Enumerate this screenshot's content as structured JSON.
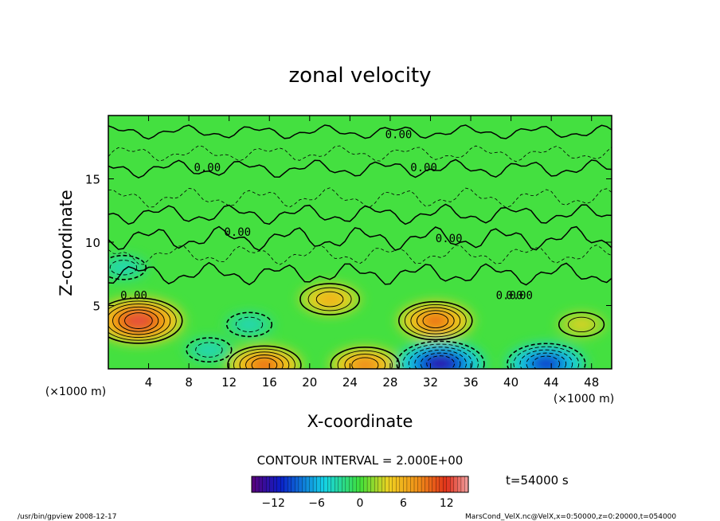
{
  "chart_data": {
    "type": "heatmap",
    "title": "zonal velocity",
    "xlabel": "X-coordinate",
    "ylabel": "Z-coordinate",
    "x_unit": "(×1000 m)",
    "x_unit_right": "(×1000 m)",
    "y_unit": "(×1000 m)",
    "xlim": [
      0,
      50
    ],
    "ylim": [
      0,
      20
    ],
    "x_ticks": [
      4,
      8,
      12,
      16,
      20,
      24,
      28,
      32,
      36,
      40,
      44,
      48
    ],
    "y_ticks": [
      5,
      10,
      15
    ],
    "contour_interval_text": "CONTOUR INTERVAL = 2.000E+00",
    "contour_labels": [
      "0.00",
      "0.00",
      "0.00",
      "0.00",
      "0.00",
      "0.00",
      "0.00",
      "0.00"
    ],
    "time_text": "t=54000 s",
    "colorbar": {
      "min": -15,
      "max": 15,
      "ticks": [
        -12,
        -6,
        0,
        6,
        12
      ],
      "tick_labels": [
        "−12",
        "−6",
        "0",
        "6",
        "12"
      ]
    },
    "footer_left": "/usr/bin/gpview   2008-12-17",
    "footer_right": "MarsCond_VelX.nc@VelX,x=0:50000,z=0:20000,t=054000",
    "features": [
      {
        "x": 3,
        "z": 3.8,
        "value": 13,
        "sign": "positive"
      },
      {
        "x": 22,
        "z": 5.5,
        "value": 7,
        "sign": "positive"
      },
      {
        "x": 32.5,
        "z": 3.8,
        "value": 10,
        "sign": "positive"
      },
      {
        "x": 15.5,
        "z": 0.3,
        "value": 10,
        "sign": "positive"
      },
      {
        "x": 25.5,
        "z": 0.3,
        "value": 9,
        "sign": "positive"
      },
      {
        "x": 47,
        "z": 3.5,
        "value": 4,
        "sign": "positive"
      },
      {
        "x": 14,
        "z": 3.5,
        "value": -4,
        "sign": "negative"
      },
      {
        "x": 33,
        "z": 0.4,
        "value": -13,
        "sign": "negative"
      },
      {
        "x": 43.5,
        "z": 0.4,
        "value": -11,
        "sign": "negative"
      },
      {
        "x": 1.5,
        "z": 8,
        "value": -4,
        "sign": "negative"
      },
      {
        "x": 10,
        "z": 1.5,
        "value": -4,
        "sign": "negative"
      }
    ],
    "colors": {
      "purple": "#5a007a",
      "blue": "#0a1ec8",
      "cyan": "#14d2e8",
      "green": "#3fe03a",
      "yellow": "#f0d020",
      "orange": "#f09018",
      "red": "#e0301a",
      "pink": "#f0a0a0"
    }
  }
}
